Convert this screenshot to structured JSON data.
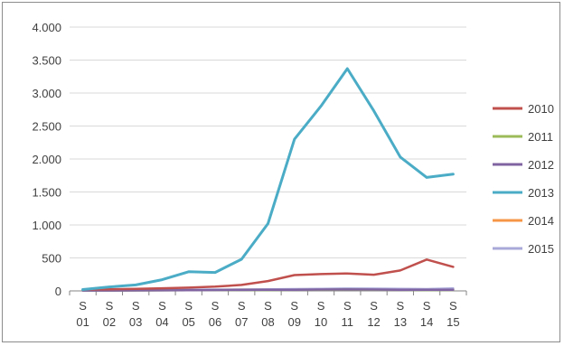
{
  "chart_data": {
    "type": "line",
    "categories": [
      [
        "S",
        "01"
      ],
      [
        "S",
        "02"
      ],
      [
        "S",
        "03"
      ],
      [
        "S",
        "04"
      ],
      [
        "S",
        "05"
      ],
      [
        "S",
        "06"
      ],
      [
        "S",
        "07"
      ],
      [
        "S",
        "08"
      ],
      [
        "S",
        "09"
      ],
      [
        "S",
        "10"
      ],
      [
        "S",
        "11"
      ],
      [
        "S",
        "12"
      ],
      [
        "S",
        "13"
      ],
      [
        "S",
        "14"
      ],
      [
        "S",
        "15"
      ]
    ],
    "ylim": [
      0,
      4000
    ],
    "yticks": [
      0,
      500,
      1000,
      1500,
      2000,
      2500,
      3000,
      3500,
      4000
    ],
    "ytick_labels": [
      "0",
      "500",
      "1.000",
      "1.500",
      "2.000",
      "2.500",
      "3.000",
      "3.500",
      "4.000"
    ],
    "grid": "horizontal",
    "legend_position": "right",
    "series": [
      {
        "name": "2010",
        "color": "#c0504d",
        "values": [
          20,
          25,
          30,
          40,
          50,
          65,
          90,
          150,
          240,
          255,
          265,
          245,
          310,
          475,
          365
        ]
      },
      {
        "name": "2011",
        "color": "#9bbb59",
        "values": [
          5,
          6,
          7,
          8,
          9,
          10,
          12,
          14,
          16,
          18,
          20,
          18,
          16,
          14,
          15
        ]
      },
      {
        "name": "2012",
        "color": "#8064a2",
        "values": [
          5,
          6,
          7,
          8,
          10,
          12,
          14,
          16,
          18,
          20,
          22,
          20,
          18,
          16,
          18
        ]
      },
      {
        "name": "2013",
        "color": "#4bacc6",
        "values": [
          20,
          60,
          90,
          170,
          290,
          280,
          480,
          1020,
          2300,
          2800,
          3370,
          2730,
          2030,
          1720,
          1770
        ]
      },
      {
        "name": "2014",
        "color": "#f79646",
        "values": [
          8,
          10,
          12,
          14,
          16,
          18,
          20,
          22,
          24,
          26,
          30,
          28,
          26,
          24,
          28
        ]
      },
      {
        "name": "2015",
        "color": "#a9a9d9",
        "values": [
          10,
          12,
          14,
          16,
          18,
          20,
          22,
          24,
          28,
          32,
          36,
          34,
          30,
          28,
          38
        ]
      }
    ]
  }
}
